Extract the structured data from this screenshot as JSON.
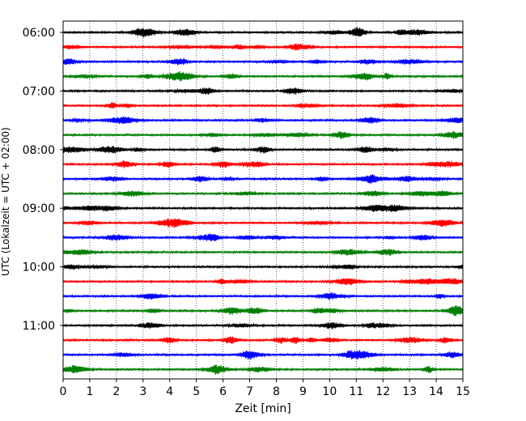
{
  "chart_data": {
    "type": "line",
    "title": "",
    "xlabel": "Zeit  [min]",
    "ylabel": "UTC (Lokalzeit = UTC + 02:00)",
    "xlim": [
      0,
      15
    ],
    "x_ticks": [
      "0",
      "1",
      "2",
      "3",
      "4",
      "5",
      "6",
      "7",
      "8",
      "9",
      "10",
      "11",
      "12",
      "13",
      "14",
      "15"
    ],
    "y_ticks": [
      "06:00",
      "07:00",
      "08:00",
      "09:00",
      "10:00",
      "11:00"
    ],
    "trace_interval_min": 15,
    "start_time": "06:00",
    "trace_count": 24,
    "trace_colors": [
      "#000000",
      "#ff0000",
      "#0000ff",
      "#007f00"
    ],
    "vertical_grid": "dotted",
    "horizontal_grid": false
  }
}
